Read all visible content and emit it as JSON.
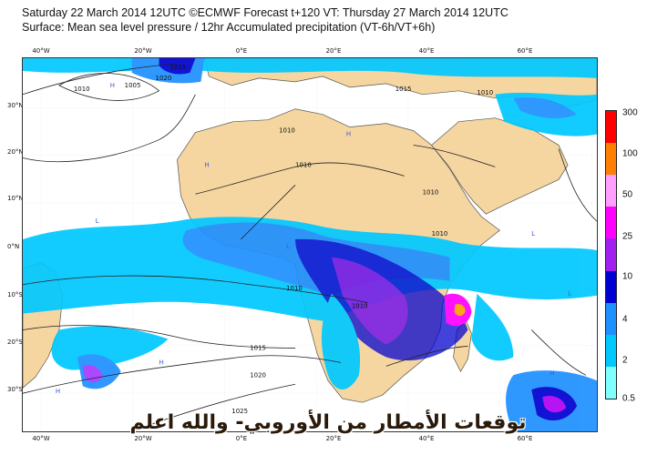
{
  "header": {
    "line1": "Saturday 22 March 2014 12UTC ©ECMWF Forecast t+120 VT: Thursday 27 March 2014 12UTC",
    "line2": "Surface: Mean sea level pressure / 12hr Accumulated precipitation (VT-6h/VT+6h)"
  },
  "axes": {
    "lon_top": [
      "40°W",
      "20°W",
      "0°E",
      "20°E",
      "40°E",
      "60°E"
    ],
    "lon_bottom": [
      "40°W",
      "20°W",
      "0°E",
      "20°E",
      "40°E",
      "60°E"
    ],
    "lat": [
      "30°N",
      "20°N",
      "10°N",
      "0°N",
      "10°S",
      "20°S",
      "30°S"
    ]
  },
  "colorbar": {
    "labels": [
      "300",
      "100",
      "50",
      "25",
      "10",
      "4",
      "2",
      "0.5"
    ],
    "colors": [
      "#ff0000",
      "#ff7f00",
      "#ff9fff",
      "#ff00ff",
      "#a020f0",
      "#0000d0",
      "#1e90ff",
      "#00c8ff",
      "#80ffff"
    ]
  },
  "isobars": [
    "1015",
    "1020",
    "1010",
    "1005",
    "1015",
    "1010",
    "1010",
    "1010",
    "1010",
    "1010",
    "1010",
    "1010",
    "1015",
    "1020",
    "1025"
  ],
  "pressure_markers": [
    "H",
    "H",
    "H",
    "L",
    "L",
    "L",
    "L",
    "H",
    "H",
    "H"
  ],
  "overlay_text": "توقعات الأمطار من الأوروبي- والله اعلم",
  "colors": {
    "land": "#f5d6a0",
    "ocean": "#ffffff",
    "border": "#333333"
  }
}
